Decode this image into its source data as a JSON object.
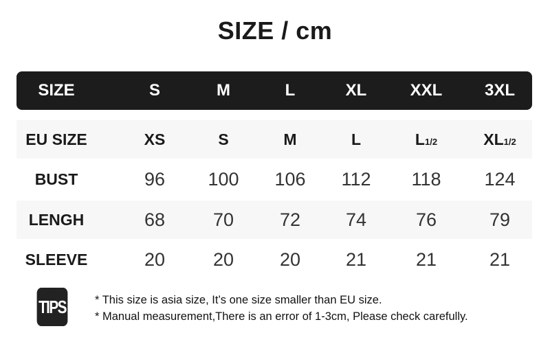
{
  "title": "SIZE / cm",
  "header": {
    "label": "SIZE",
    "sizes": [
      "S",
      "M",
      "L",
      "XL",
      "XXL",
      "3XL"
    ]
  },
  "rows": {
    "eu": {
      "label": "EU SIZE",
      "values": [
        {
          "main": "XS",
          "sub": ""
        },
        {
          "main": "S",
          "sub": ""
        },
        {
          "main": "M",
          "sub": ""
        },
        {
          "main": "L",
          "sub": ""
        },
        {
          "main": "L",
          "sub": "1/2"
        },
        {
          "main": "XL",
          "sub": "1/2"
        }
      ]
    },
    "bust": {
      "label": "BUST",
      "values": [
        "96",
        "100",
        "106",
        "112",
        "118",
        "124"
      ]
    },
    "length": {
      "label": "LENGH",
      "values": [
        "68",
        "70",
        "72",
        "74",
        "76",
        "79"
      ]
    },
    "sleeve": {
      "label": "SLEEVE",
      "values": [
        "20",
        "20",
        "20",
        "21",
        "21",
        "21"
      ]
    }
  },
  "tips": {
    "icon_text": "TIPS",
    "notes": [
      "* This size is asia size, It’s one size smaller than EU size.",
      "* Manual measurement,There is an error of 1-3cm, Please check carefully."
    ]
  }
}
